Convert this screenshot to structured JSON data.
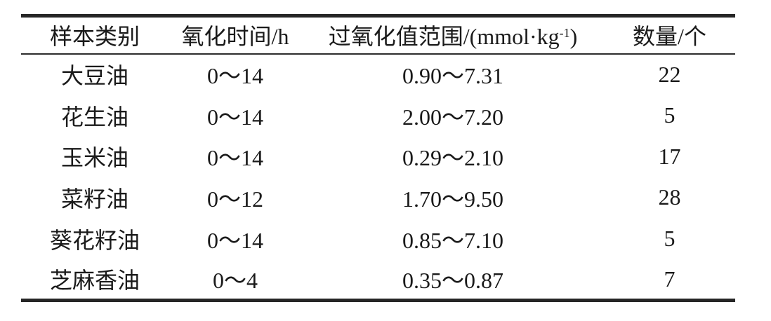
{
  "table": {
    "headers": {
      "sample": "样本类别",
      "time": "氧化时间/h",
      "range_prefix": "过氧化值范围/(mmol·kg",
      "range_sup": "-1",
      "range_suffix": ")",
      "count": "数量/个"
    },
    "rows": [
      {
        "sample": "大豆油",
        "time": "0～14",
        "range": "0.90～7.31",
        "count": "22"
      },
      {
        "sample": "花生油",
        "time": "0～14",
        "range": "2.00～7.20",
        "count": "5"
      },
      {
        "sample": "玉米油",
        "time": "0～14",
        "range": "0.29～2.10",
        "count": "17"
      },
      {
        "sample": "菜籽油",
        "time": "0～12",
        "range": "1.70～9.50",
        "count": "28"
      },
      {
        "sample": "葵花籽油",
        "time": "0～14",
        "range": "0.85～7.10",
        "count": "5"
      },
      {
        "sample": "芝麻香油",
        "time": "0～4",
        "range": "0.35～0.87",
        "count": "7"
      }
    ],
    "colors": {
      "text": "#1a1a1a",
      "rule": "#262626"
    }
  }
}
